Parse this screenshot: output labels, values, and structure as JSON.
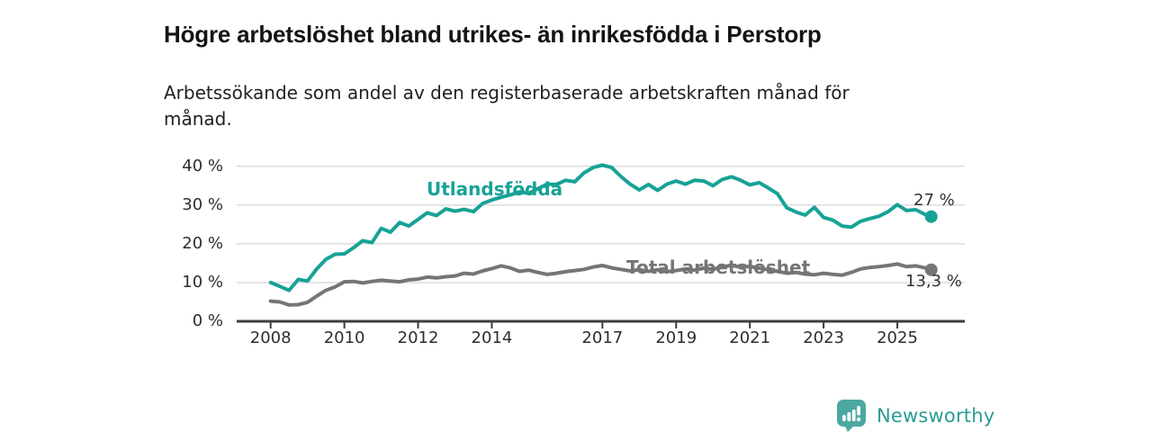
{
  "title": "Högre arbetslöshet bland utrikes- än inrikesfödda i Perstorp",
  "subtitle": "Arbetssökande som andel av den registerbaserade arbetskraften månad för månad.",
  "branding": {
    "name": "Newsworthy",
    "icon": "bar-chart-speech-bubble",
    "color": "#4ba9a1",
    "text_color": "#2b9c95"
  },
  "chart_data": {
    "type": "line",
    "title": "",
    "xlabel": "",
    "ylabel": "",
    "x_unit": "year (monthly series shown)",
    "grid": "horizontal",
    "legend": "inline-labels",
    "xlim": [
      2007.6,
      2026.2
    ],
    "ylim": [
      0,
      43
    ],
    "colors": {
      "grid": "#dcdcdc",
      "axis": "#3d3d3d"
    },
    "y_ticks": [
      {
        "value": 0,
        "label": "0 %"
      },
      {
        "value": 10,
        "label": "10 %"
      },
      {
        "value": 20,
        "label": "20 %"
      },
      {
        "value": 30,
        "label": "30 %"
      },
      {
        "value": 40,
        "label": "40 %"
      }
    ],
    "x_ticks": [
      {
        "value": 2008,
        "label": "2008"
      },
      {
        "value": 2010,
        "label": "2010"
      },
      {
        "value": 2012,
        "label": "2012"
      },
      {
        "value": 2014,
        "label": "2014"
      },
      {
        "value": 2017,
        "label": "2017"
      },
      {
        "value": 2019,
        "label": "2019"
      },
      {
        "value": 2021,
        "label": "2021"
      },
      {
        "value": 2023,
        "label": "2023"
      },
      {
        "value": 2025,
        "label": "2025"
      }
    ],
    "x": [
      2008,
      2008.25,
      2008.5,
      2008.75,
      2009,
      2009.25,
      2009.5,
      2009.75,
      2010,
      2010.25,
      2010.5,
      2010.75,
      2011,
      2011.25,
      2011.5,
      2011.75,
      2012,
      2012.25,
      2012.5,
      2012.75,
      2013,
      2013.25,
      2013.5,
      2013.75,
      2014,
      2014.25,
      2014.5,
      2014.75,
      2015,
      2015.25,
      2015.5,
      2015.75,
      2016,
      2016.25,
      2016.5,
      2016.75,
      2017,
      2017.25,
      2017.5,
      2017.75,
      2018,
      2018.25,
      2018.5,
      2018.75,
      2019,
      2019.25,
      2019.5,
      2019.75,
      2020,
      2020.25,
      2020.5,
      2020.75,
      2021,
      2021.25,
      2021.5,
      2021.75,
      2022,
      2022.25,
      2022.5,
      2022.75,
      2023,
      2023.25,
      2023.5,
      2023.75,
      2024,
      2024.25,
      2024.5,
      2024.75,
      2025,
      2025.25,
      2025.5,
      2025.75,
      2025.92
    ],
    "series": [
      {
        "name": "Utlandsfödda",
        "color": "#17a296",
        "end_label": "27 %",
        "end_value": 27.0,
        "values": [
          10.0,
          9.0,
          8.0,
          10.8,
          10.4,
          13.5,
          16.0,
          17.3,
          17.4,
          19.0,
          20.8,
          20.3,
          24.0,
          23.0,
          25.5,
          24.6,
          26.3,
          28.0,
          27.3,
          29.0,
          28.4,
          28.9,
          28.3,
          30.4,
          31.3,
          32.0,
          32.6,
          33.4,
          33.0,
          34.2,
          35.4,
          35.3,
          36.4,
          36.0,
          38.3,
          39.7,
          40.3,
          39.7,
          37.4,
          35.4,
          33.9,
          35.3,
          33.8,
          35.4,
          36.2,
          35.4,
          36.4,
          36.2,
          35.0,
          36.6,
          37.3,
          36.4,
          35.2,
          35.8,
          34.4,
          32.9,
          29.3,
          28.2,
          27.4,
          29.4,
          26.8,
          26.1,
          24.6,
          24.3,
          25.8,
          26.5,
          27.1,
          28.3,
          30.1,
          28.6,
          28.8,
          27.6,
          27.0
        ]
      },
      {
        "name": "Total arbetslöshet",
        "color": "#757575",
        "end_label": "13,3 %",
        "end_value": 13.3,
        "values": [
          5.2,
          5.0,
          4.2,
          4.3,
          4.9,
          6.5,
          8.0,
          8.9,
          10.2,
          10.3,
          9.9,
          10.3,
          10.6,
          10.4,
          10.2,
          10.7,
          10.9,
          11.4,
          11.2,
          11.5,
          11.7,
          12.4,
          12.2,
          13.0,
          13.6,
          14.3,
          13.8,
          12.9,
          13.2,
          12.6,
          12.1,
          12.4,
          12.8,
          13.1,
          13.4,
          14.0,
          14.4,
          13.8,
          13.4,
          13.0,
          13.3,
          12.9,
          13.3,
          12.8,
          13.1,
          13.5,
          13.2,
          13.7,
          13.4,
          14.1,
          14.4,
          14.0,
          14.2,
          13.7,
          13.3,
          12.9,
          12.4,
          12.6,
          12.2,
          12.0,
          12.4,
          12.1,
          11.9,
          12.6,
          13.5,
          13.9,
          14.1,
          14.4,
          14.8,
          14.1,
          14.3,
          13.8,
          13.3
        ]
      }
    ]
  }
}
